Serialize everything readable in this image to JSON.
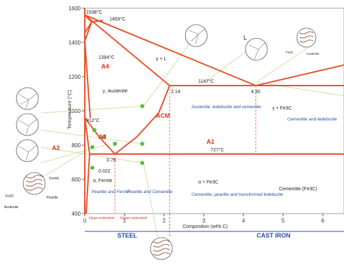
{
  "diagram": {
    "y_axis_label": "Temperature (°C)",
    "x_axis_label": "Composition (wt% C)",
    "y_ticks": [
      "1600",
      "1400",
      "1200",
      "1000",
      "800",
      "600",
      "400"
    ],
    "x_ticks": [
      "0",
      "1",
      "2",
      "3",
      "4",
      "5",
      "6"
    ],
    "temps": {
      "t1538": "1538°C",
      "t1493": "1493°C",
      "t1394": "1394°C",
      "t1147": "1147°C",
      "t912": "912°C",
      "t727": "727°C"
    },
    "compositions": {
      "c214": "2.14",
      "c430": "4.30",
      "c076": "0.76",
      "c0022": "0.022"
    },
    "phases": {
      "L": "L",
      "gamma_L": "γ + L",
      "austenite": "γ, Austenite",
      "gamma_fe3c": "γ + Fe3C",
      "alpha_fe3c": "α + Fe3C",
      "ferrite": "α, Ferrite",
      "cementite": "Cementite (Fe3C)"
    },
    "lines": {
      "A4": "A4",
      "A3": "A3",
      "A2": "A2",
      "ACM": "ACM",
      "A1": "A1"
    },
    "regions": {
      "austenite_ledeburite_cementite": "Austenite, ledeburite and cementite",
      "cementite_ledeburite": "Cementite and ledeburite",
      "pearlite_ferrite": "Pearlite and Ferrite",
      "pearlite_cementite": "Pearlite and Cementite",
      "cementite_pearlite_ledeburite": "Cementite, pearlite and transformed ledeburite",
      "hypo": "Hypo eutectoid",
      "hyper": "Hyper eutectoid"
    },
    "bands": {
      "steel": "STEEL",
      "cast_iron": "CAST IRON"
    },
    "micro_labels": {
      "fe3c": "Fe3C",
      "pearlite": "Pearlite",
      "austenite_small": "Austenite",
      "ferrite_small": "Ferrite",
      "fe3c_small": "Fe3C",
      "austenite_lb": "Austenite"
    }
  },
  "colors": {
    "phase_line": "#e8502a",
    "guide_line": "#cde0a6",
    "green_dot": "#5cbf3a",
    "blue_text": "#2a4aa8",
    "axis": "#555555"
  }
}
